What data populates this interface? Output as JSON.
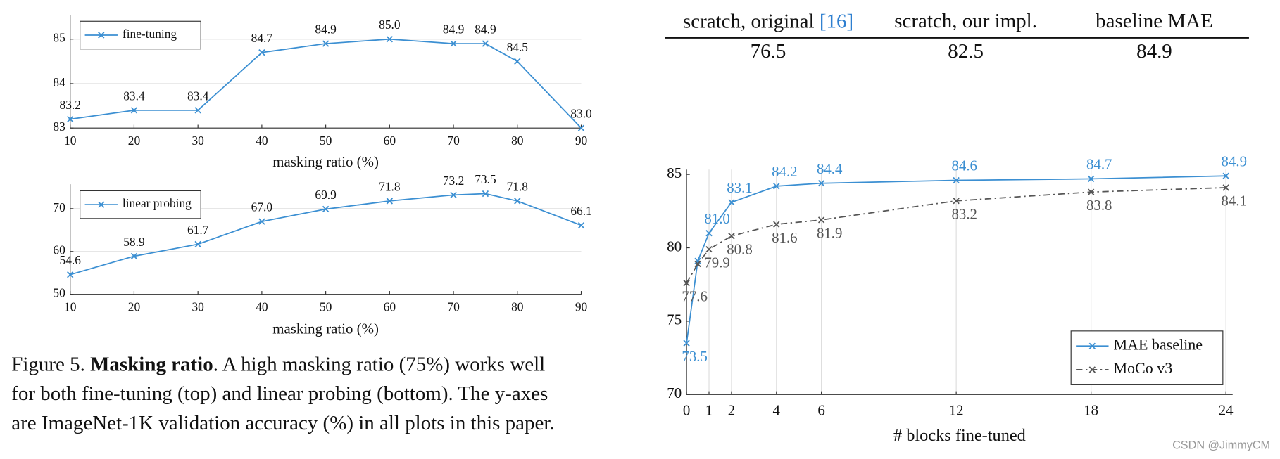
{
  "chart_data": [
    {
      "type": "line",
      "xlabel": "masking ratio (%)",
      "x": [
        10,
        20,
        30,
        40,
        50,
        60,
        70,
        75,
        80,
        90
      ],
      "series": [
        {
          "name": "fine-tuning",
          "color": "#3b8fd2",
          "values": [
            83.2,
            83.4,
            83.4,
            84.7,
            84.9,
            85.0,
            84.9,
            84.9,
            84.5,
            83.0
          ],
          "value_labels": [
            "83.2",
            "83.4",
            "83.4",
            "84.7",
            "84.9",
            "85.0",
            "84.9",
            "84.9",
            "84.5",
            "83.0"
          ]
        }
      ],
      "xlim": [
        10,
        90
      ],
      "xticks": [
        10,
        20,
        30,
        40,
        50,
        60,
        70,
        80,
        90
      ],
      "ylim": [
        83,
        85.55
      ],
      "yticks": [
        83,
        84,
        85
      ],
      "grid": "y",
      "legend": "upper left"
    },
    {
      "type": "line",
      "xlabel": "masking ratio (%)",
      "x": [
        10,
        20,
        30,
        40,
        50,
        60,
        70,
        75,
        80,
        90
      ],
      "series": [
        {
          "name": "linear probing",
          "color": "#3b8fd2",
          "values": [
            54.6,
            58.9,
            61.7,
            67.0,
            69.9,
            71.8,
            73.2,
            73.5,
            71.8,
            66.1
          ],
          "value_labels": [
            "54.6",
            "58.9",
            "61.7",
            "67.0",
            "69.9",
            "71.8",
            "73.2",
            "73.5",
            "71.8",
            "66.1"
          ]
        }
      ],
      "xlim": [
        10,
        90
      ],
      "xticks": [
        10,
        20,
        30,
        40,
        50,
        60,
        70,
        80,
        90
      ],
      "ylim": [
        50,
        75.7
      ],
      "yticks": [
        50,
        60,
        70
      ],
      "grid": "y",
      "legend": "upper left"
    },
    {
      "type": "line",
      "xlabel": "# blocks fine-tuned",
      "x": [
        0,
        0.5,
        1,
        2,
        4,
        6,
        12,
        18,
        24
      ],
      "series": [
        {
          "name": "MAE baseline",
          "color": "#3b8fd2",
          "dash": "solid",
          "values": [
            73.5,
            79.1,
            81.0,
            83.1,
            84.2,
            84.4,
            84.6,
            84.7,
            84.9
          ],
          "value_labels": [
            "73.5",
            null,
            "81.0",
            "83.1",
            "84.2",
            "84.4",
            "84.6",
            "84.7",
            "84.9"
          ]
        },
        {
          "name": "MoCo v3",
          "color": "#555555",
          "dash": "dashdot",
          "values": [
            77.6,
            78.9,
            79.9,
            80.8,
            81.6,
            81.9,
            83.2,
            83.8,
            84.1
          ],
          "value_labels": [
            "77.6",
            null,
            "79.9",
            "80.8",
            "81.6",
            "81.9",
            "83.2",
            "83.8",
            "84.1"
          ]
        }
      ],
      "xlim": [
        0,
        24.3
      ],
      "xticks": [
        0,
        1,
        2,
        4,
        6,
        12,
        18,
        24
      ],
      "ylim": [
        70,
        85.33
      ],
      "yticks": [
        70,
        75,
        80,
        85
      ],
      "grid": "x",
      "legend": "lower right"
    }
  ],
  "table": {
    "header": [
      "scratch, original ",
      "scratch, our impl.",
      "baseline MAE"
    ],
    "citation": "[16]",
    "rows": [
      [
        "76.5",
        "82.5",
        "84.9"
      ]
    ]
  },
  "caption": {
    "label": "Figure 5.",
    "bold": "Masking ratio",
    "lines": [
      ". A high masking ratio (75%) works well",
      "for both fine-tuning (top) and linear probing (bottom). The y-axes",
      "are ImageNet-1K validation accuracy (%) in all plots in this paper."
    ]
  },
  "watermark": "CSDN @JimmyCM"
}
